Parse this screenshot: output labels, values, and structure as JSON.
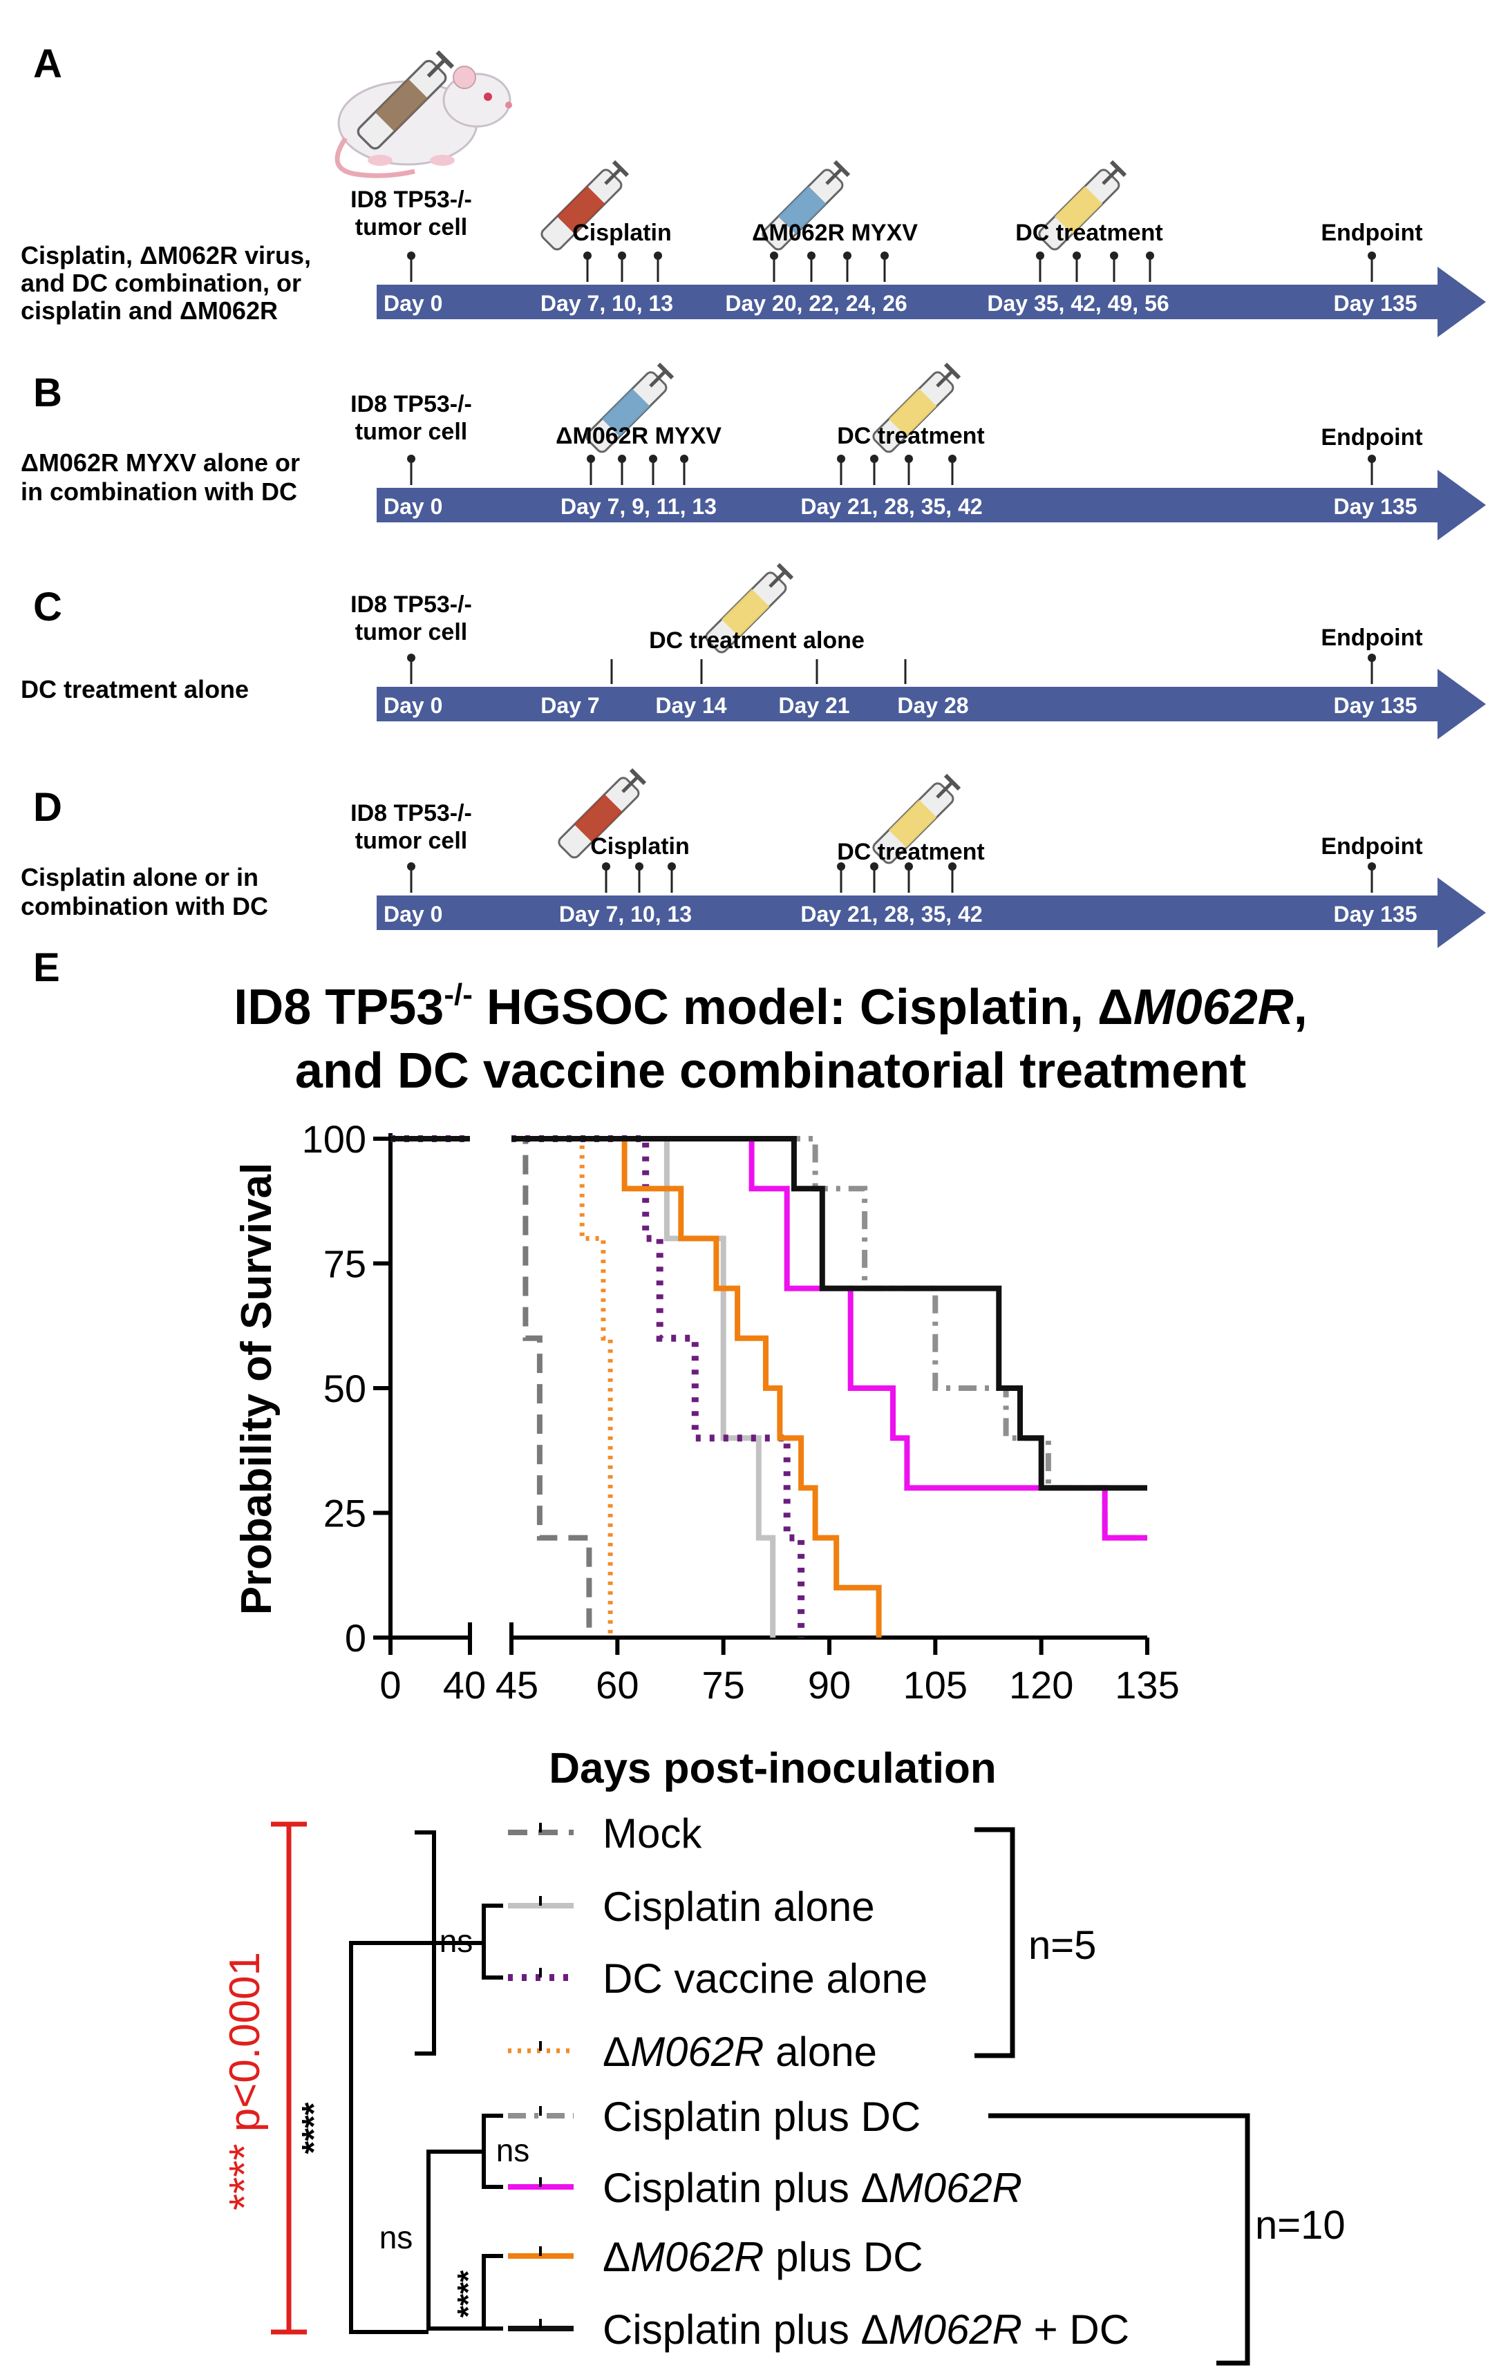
{
  "colors": {
    "arrow": "#4a5c9a",
    "arrow_text": "#ffffff",
    "mock": "#7a7a7a",
    "cisplatin_alone": "#c2c2c2",
    "dc_alone": "#6b1e7e",
    "m062r_alone": "#f28c28",
    "cis_dc": "#8f8f8f",
    "cis_m062r": "#ee10ee",
    "m062r_dc": "#f07f10",
    "triple": "#111111",
    "significance": "#e0201d",
    "syringe_red": "#b73a22",
    "syringe_blue": "#6a9ec4",
    "syringe_yellow": "#f0d46e",
    "syringe_brown": "#8a6a4a"
  },
  "panels": [
    {
      "letter": "A",
      "group_lines": [
        "Cisplatin, ΔM062R virus,",
        "and DC combination, or",
        "cisplatin and ΔM062R"
      ],
      "tumor_label": [
        "ID8 TP53-/-",
        "tumor cell"
      ],
      "events": [
        {
          "label": "Cisplatin",
          "days": "Day 7, 10, 13",
          "syringe": "red"
        },
        {
          "label": "ΔM062R MYXV",
          "days": "Day 20, 22, 24, 26",
          "syringe": "blue"
        },
        {
          "label": "DC treatment",
          "days": "Day 35, 42, 49, 56",
          "syringe": "yellow"
        }
      ],
      "start_day": "Day  0",
      "endpoint_label": "Endpoint",
      "endpoint_day": "Day 135"
    },
    {
      "letter": "B",
      "group_lines": [
        "ΔM062R MYXV alone or",
        "in combination with DC"
      ],
      "tumor_label": [
        "ID8 TP53-/-",
        "tumor cell"
      ],
      "events": [
        {
          "label": "ΔM062R MYXV",
          "days": "Day 7, 9, 11, 13",
          "syringe": "blue"
        },
        {
          "label": "DC treatment",
          "days": "Day 21, 28, 35, 42",
          "syringe": "yellow"
        }
      ],
      "start_day": "Day  0",
      "endpoint_label": "Endpoint",
      "endpoint_day": "Day 135"
    },
    {
      "letter": "C",
      "group_lines": [
        "DC treatment alone"
      ],
      "tumor_label": [
        "ID8 TP53-/-",
        "tumor cell"
      ],
      "events": [
        {
          "label": "DC treatment alone",
          "days": "",
          "syringe": "yellow"
        }
      ],
      "c_days": [
        "Day 7",
        "Day 14",
        "Day 21",
        "Day 28"
      ],
      "start_day": "Day  0",
      "endpoint_label": "Endpoint",
      "endpoint_day": "Day 135"
    },
    {
      "letter": "D",
      "group_lines": [
        "Cisplatin alone or in",
        "combination with DC"
      ],
      "tumor_label": [
        "ID8 TP53-/-",
        "tumor cell"
      ],
      "events": [
        {
          "label": "Cisplatin",
          "days": "Day 7, 10, 13",
          "syringe": "red"
        },
        {
          "label": "DC treatment",
          "days": "Day 21, 28, 35, 42",
          "syringe": "yellow"
        }
      ],
      "start_day": "Day  0",
      "endpoint_label": "Endpoint",
      "endpoint_day": "Day 135"
    }
  ],
  "panel_e": {
    "letter": "E",
    "title_line1_prefix": "ID8 TP53",
    "title_line1_sup": "-/-",
    "title_line1_middle": " HGSOC model: Cisplatin, Δ",
    "title_line1_italic": "M062R",
    "title_line1_suffix": ",",
    "title_line2": "and DC vaccine combinatorial treatment"
  },
  "chart_data": {
    "type": "line",
    "subtype": "kaplan-meier step",
    "title": "ID8 TP53-/- HGSOC model: Cisplatin, ΔM062R, and DC vaccine combinatorial treatment",
    "xlabel": "Days post-inoculation",
    "ylabel": "Probability of Survival",
    "x_ticks": [
      "0",
      "40",
      "45",
      "60",
      "75",
      "90",
      "105",
      "120",
      "135"
    ],
    "y_ticks": [
      "0",
      "25",
      "50",
      "75",
      "100"
    ],
    "xlim": [
      0,
      135
    ],
    "x_axis_break": [
      40,
      45
    ],
    "ylim": [
      0,
      100
    ],
    "series": [
      {
        "name": "Mock",
        "color_key": "mock",
        "dash": "long",
        "x": [
          0,
          47,
          49,
          56
        ],
        "y": [
          100,
          60,
          20,
          0
        ]
      },
      {
        "name": "Cisplatin alone",
        "color_key": "cisplatin_alone",
        "dash": "solid",
        "x": [
          0,
          67,
          75,
          80,
          82
        ],
        "y": [
          100,
          80,
          40,
          20,
          0
        ]
      },
      {
        "name": "DC vaccine alone",
        "color_key": "dc_alone",
        "dash": "dot",
        "x": [
          0,
          64,
          66,
          71,
          84,
          86
        ],
        "y": [
          100,
          80,
          60,
          40,
          20,
          0
        ]
      },
      {
        "name": "ΔM062R alone",
        "color_key": "m062r_alone",
        "dash": "dot-fine",
        "x": [
          0,
          55,
          58,
          59
        ],
        "y": [
          100,
          80,
          60,
          0
        ]
      },
      {
        "name": "Cisplatin plus DC",
        "color_key": "cis_dc",
        "dash": "dashdot",
        "x": [
          0,
          88,
          95,
          105,
          115,
          121,
          129
        ],
        "y": [
          100,
          90,
          70,
          50,
          40,
          30,
          20
        ]
      },
      {
        "name": "Cisplatin plus ΔM062R",
        "color_key": "cis_m062r",
        "dash": "solid",
        "x": [
          0,
          79,
          84,
          93,
          99,
          101,
          129
        ],
        "y": [
          100,
          90,
          70,
          50,
          40,
          30,
          20
        ]
      },
      {
        "name": "ΔM062R plus DC",
        "color_key": "m062r_dc",
        "dash": "solid",
        "x": [
          0,
          61,
          69,
          74,
          77,
          81,
          83,
          86,
          88,
          91,
          97
        ],
        "y": [
          100,
          90,
          80,
          70,
          60,
          50,
          40,
          30,
          20,
          10,
          0
        ]
      },
      {
        "name": "Cisplatin plus ΔM062R + DC",
        "color_key": "triple",
        "dash": "solid",
        "x": [
          0,
          85,
          89,
          114,
          117,
          120
        ],
        "y": [
          100,
          90,
          70,
          50,
          40,
          30
        ]
      }
    ],
    "legend": [
      {
        "prefix": "Mock",
        "italic": "",
        "suffix": ""
      },
      {
        "prefix": "Cisplatin alone",
        "italic": "",
        "suffix": ""
      },
      {
        "prefix": "DC vaccine alone",
        "italic": "",
        "suffix": ""
      },
      {
        "prefix": "Δ",
        "italic": "M062R",
        "suffix": " alone"
      },
      {
        "prefix": "Cisplatin plus DC",
        "italic": "",
        "suffix": ""
      },
      {
        "prefix": "Cisplatin plus  Δ",
        "italic": "M062R",
        "suffix": ""
      },
      {
        "prefix": "Δ",
        "italic": "M062R",
        "suffix": " plus DC"
      },
      {
        "prefix": "Cisplatin plus Δ",
        "italic": "M062R",
        "suffix": " + DC"
      }
    ],
    "group_n": [
      "n=5",
      "n=10"
    ],
    "significance": {
      "overall": "**** p<0.0001",
      "ns_labels": [
        "ns",
        "ns",
        "ns"
      ],
      "stars": [
        "****",
        "****"
      ]
    }
  }
}
